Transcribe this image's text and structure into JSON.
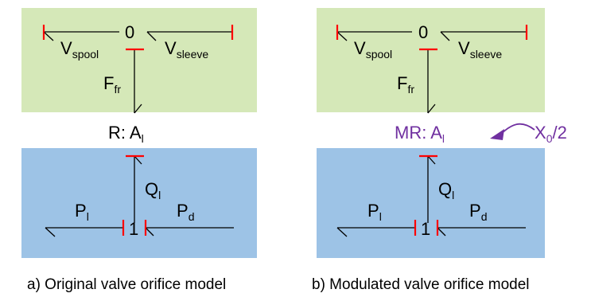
{
  "colors": {
    "mechanical_bg": "#d5e8b8",
    "hydraulic_bg": "#9dc3e6",
    "causal_stroke": "#ff0000",
    "modulation": "#7030a0"
  },
  "panels": [
    {
      "zero_junction": "0",
      "v_spool": {
        "main": "V",
        "sub": "spool"
      },
      "v_sleeve": {
        "main": "V",
        "sub": "sleeve"
      },
      "f_fr": {
        "main": "F",
        "sub": "fr"
      },
      "resistor": {
        "prefix": "R: ",
        "main": "A",
        "sub": "l"
      },
      "q_l": {
        "main": "Q",
        "sub": "l"
      },
      "p_l": {
        "main": "P",
        "sub": "l"
      },
      "p_d": {
        "main": "P",
        "sub": "d"
      },
      "one_junction": "1",
      "caption": "a) Original valve orifice model"
    },
    {
      "zero_junction": "0",
      "v_spool": {
        "main": "V",
        "sub": "spool"
      },
      "v_sleeve": {
        "main": "V",
        "sub": "sleeve"
      },
      "f_fr": {
        "main": "F",
        "sub": "fr"
      },
      "resistor": {
        "prefix": "MR: ",
        "main": "A",
        "sub": "l"
      },
      "modulation_input": {
        "main": "X",
        "sub": "0",
        "suffix": "/2"
      },
      "q_l": {
        "main": "Q",
        "sub": "l"
      },
      "p_l": {
        "main": "P",
        "sub": "l"
      },
      "p_d": {
        "main": "P",
        "sub": "d"
      },
      "one_junction": "1",
      "caption": "b) Modulated valve orifice model"
    }
  ]
}
